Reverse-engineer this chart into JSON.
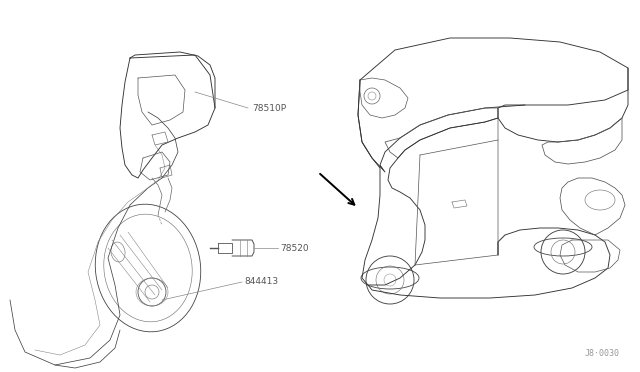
{
  "bg_color": "#ffffff",
  "line_color": "#333333",
  "label_color": "#555555",
  "leader_color": "#888888",
  "arrow_color": "#000000",
  "diagram_id": "J8·0030",
  "label_78510P": "78510P",
  "label_78520": "78520",
  "label_844413": "844413",
  "font_size_labels": 6.5,
  "font_size_id": 6,
  "lw_main": 0.6,
  "lw_thin": 0.4,
  "lw_arrow": 1.4
}
